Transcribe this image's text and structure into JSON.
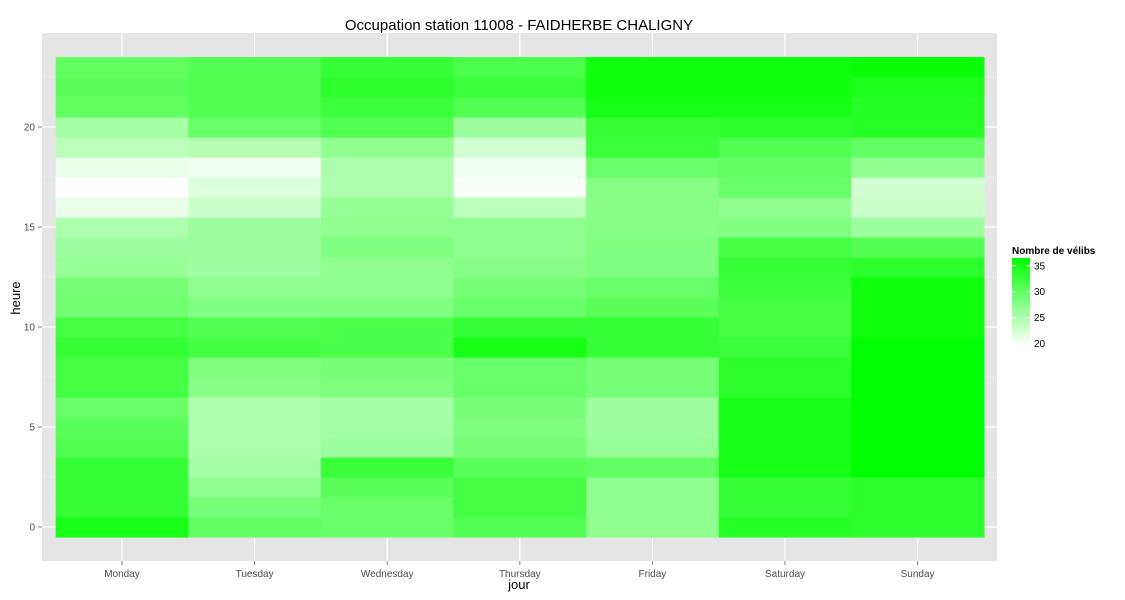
{
  "chart_data": {
    "type": "heatmap",
    "title": "Occupation station 11008 - FAIDHERBE CHALIGNY",
    "xlabel": "jour",
    "ylabel": "heure",
    "x_categories": [
      "Monday",
      "Tuesday",
      "Wednesday",
      "Thursday",
      "Friday",
      "Saturday",
      "Sunday"
    ],
    "y_range": [
      -0.5,
      23.5
    ],
    "y_ticks": [
      0,
      5,
      10,
      15,
      20
    ],
    "grid": true,
    "legend": {
      "title": "Nombre de vélibs",
      "placement": "right",
      "ticks": [
        20,
        25,
        30,
        35
      ],
      "min": 19.5,
      "max": 36.5,
      "color_low": "#ffffff",
      "color_high": "#00ff00"
    },
    "values": [
      [
        35,
        30,
        29.5,
        31,
        27,
        34,
        33.5
      ],
      [
        33,
        28.5,
        29.5,
        32,
        27,
        33,
        33.5
      ],
      [
        33,
        27,
        30.5,
        32,
        27,
        33,
        33.5
      ],
      [
        33,
        25.5,
        32.5,
        30.5,
        30,
        35,
        36.5
      ],
      [
        31,
        25,
        26,
        28.5,
        26.5,
        35,
        36.5
      ],
      [
        30.5,
        25,
        25.5,
        28,
        26,
        35,
        36.5
      ],
      [
        29.5,
        25,
        25.5,
        28.5,
        26,
        35,
        36.5
      ],
      [
        32,
        27.5,
        28,
        29.5,
        28.5,
        33.5,
        36.5
      ],
      [
        32,
        28,
        28.5,
        29.5,
        28.5,
        33.5,
        36.5
      ],
      [
        33,
        32,
        31.5,
        35,
        33,
        32.5,
        36.5
      ],
      [
        32,
        31,
        31.5,
        33,
        33,
        32,
        35.5
      ],
      [
        29,
        28,
        28,
        29.5,
        30.5,
        32,
        35.5
      ],
      [
        28.5,
        27,
        27,
        28.5,
        29.5,
        32.5,
        35.5
      ],
      [
        26.5,
        26,
        27,
        27.5,
        28,
        33,
        33.5
      ],
      [
        26,
        26,
        28,
        27,
        28,
        32,
        31
      ],
      [
        25,
        26,
        27,
        27,
        27.5,
        28,
        26
      ],
      [
        21,
        23,
        26.5,
        24,
        27.5,
        27,
        23
      ],
      [
        19.5,
        22,
        25,
        20,
        27.5,
        29.5,
        22.5
      ],
      [
        21,
        20.5,
        25,
        20.5,
        29.5,
        30,
        27
      ],
      [
        24,
        24.5,
        27,
        22.5,
        32.5,
        31,
        30
      ],
      [
        25.5,
        29.5,
        31,
        26,
        33,
        33.5,
        34
      ],
      [
        30,
        31,
        32.5,
        31,
        35,
        35,
        34
      ],
      [
        30.5,
        31,
        33.5,
        32.5,
        35.5,
        35.5,
        34.5
      ],
      [
        30,
        31,
        33,
        31.5,
        35.5,
        35.5,
        36
      ]
    ]
  }
}
